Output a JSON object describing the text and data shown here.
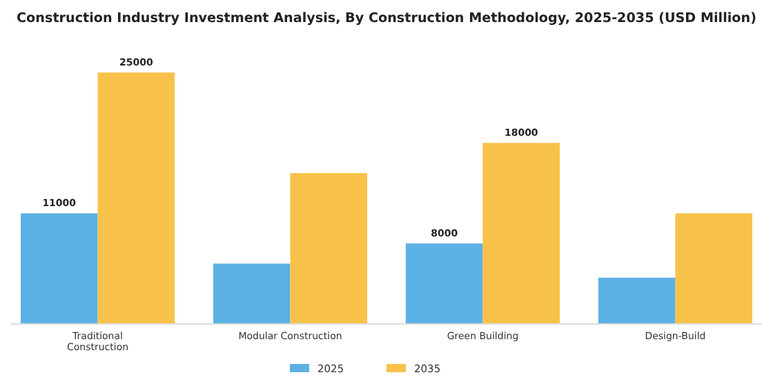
{
  "chart_data": {
    "type": "bar",
    "title": "Construction Industry Investment Analysis, By Construction Methodology, 2025-2035 (USD Million)",
    "categories": [
      "Traditional Construction",
      "Modular Construction",
      "Green Building",
      "Design-Build"
    ],
    "series": [
      {
        "name": "2025",
        "color": "#5cb1e4",
        "values": [
          11000,
          6000,
          8000,
          4600
        ],
        "value_labels": [
          "11000",
          null,
          "8000",
          null
        ]
      },
      {
        "name": "2035",
        "color": "#f8c24a",
        "values": [
          25000,
          15000,
          18000,
          11000
        ],
        "value_labels": [
          "25000",
          null,
          "18000",
          null
        ]
      }
    ],
    "tick_labels": "x",
    "legend": "bottom",
    "grid": false
  }
}
